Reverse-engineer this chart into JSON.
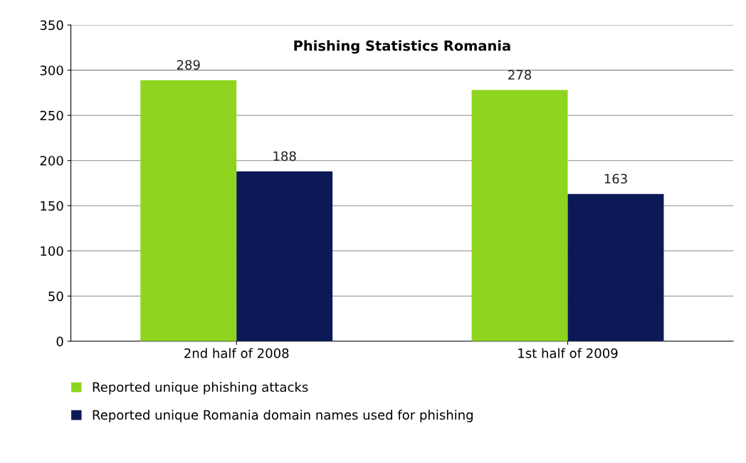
{
  "chart_data": {
    "type": "bar",
    "title": "Phishing Statistics Romania",
    "categories": [
      "2nd half of 2008",
      "1st half of 2009"
    ],
    "series": [
      {
        "name": "Reported unique phishing attacks",
        "color": "#8fd51f",
        "values": [
          289,
          278
        ]
      },
      {
        "name": "Reported unique Romania domain names used for phishing",
        "color": "#0b1a56",
        "values": [
          188,
          163
        ]
      }
    ],
    "ylim": [
      0,
      350
    ],
    "yticks": [
      0,
      50,
      100,
      150,
      200,
      250,
      300,
      350
    ],
    "grid": "y",
    "legend": "bottom",
    "data_labels": true
  }
}
